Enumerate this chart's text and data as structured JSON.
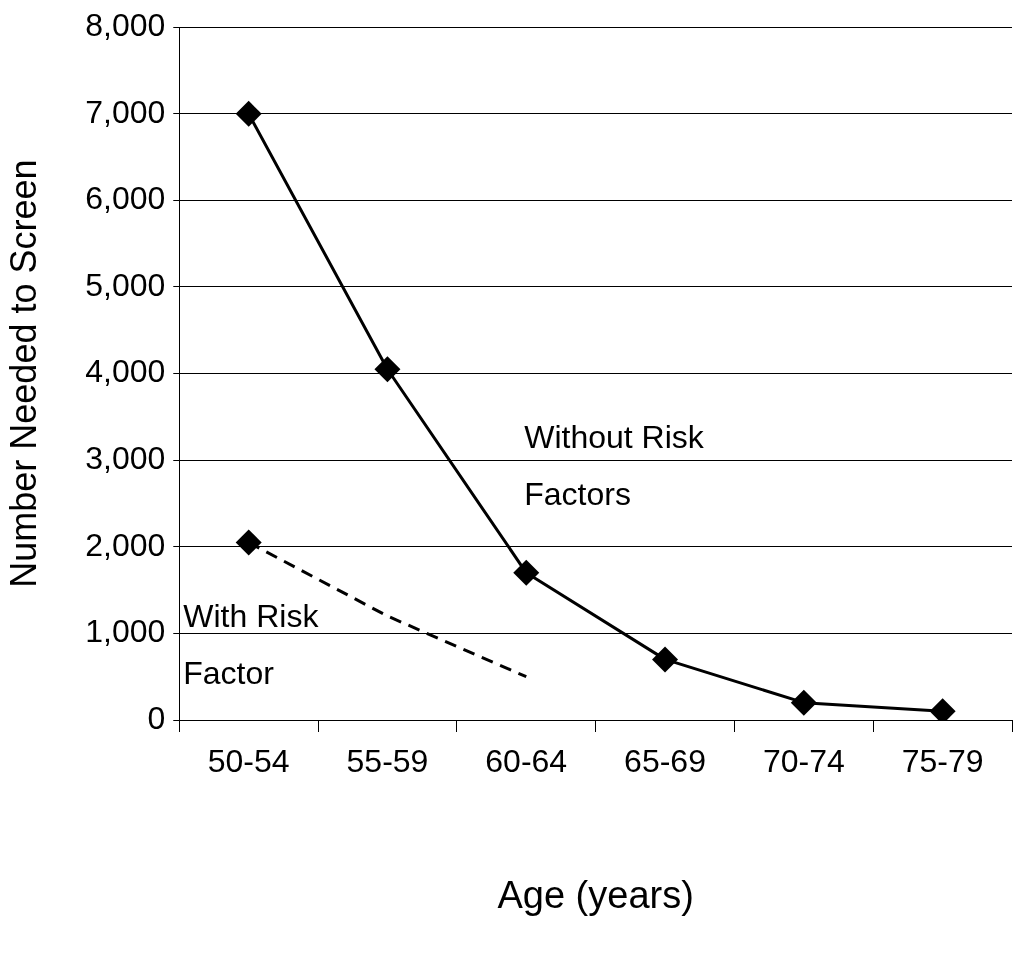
{
  "chart_data": {
    "type": "line",
    "xlabel": "Age (years)",
    "ylabel": "Number Needed to Screen",
    "categories": [
      "50-54",
      "55-59",
      "60-64",
      "65-69",
      "70-74",
      "75-79"
    ],
    "series": [
      {
        "name": "Without Risk Factors",
        "color": "#000000",
        "values": [
          7000,
          4050,
          1700,
          700,
          200,
          100
        ],
        "marker": "diamond",
        "line_style": "solid"
      },
      {
        "name": "With Risk Factor",
        "color": "#000000",
        "values": [
          2050,
          1200,
          500,
          null,
          null,
          null
        ],
        "marker": "none",
        "line_style": "dashed"
      },
      {
        "type": "scatter",
        "color": "#000000",
        "x": [
          "50-54"
        ],
        "values": [
          2050
        ],
        "marker": "diamond"
      }
    ],
    "ylim": [
      0,
      8000
    ],
    "yticks": [
      {
        "value": 0,
        "label": "0"
      },
      {
        "value": 1000,
        "label": "1,000"
      },
      {
        "value": 2000,
        "label": "2,000"
      },
      {
        "value": 3000,
        "label": "3,000"
      },
      {
        "value": 4000,
        "label": "4,000"
      },
      {
        "value": 5000,
        "label": "5,000"
      },
      {
        "value": 6000,
        "label": "6,000"
      },
      {
        "value": 7000,
        "label": "7,000"
      },
      {
        "value": 8000,
        "label": "8,000"
      }
    ],
    "grid": "y",
    "legend": false
  }
}
